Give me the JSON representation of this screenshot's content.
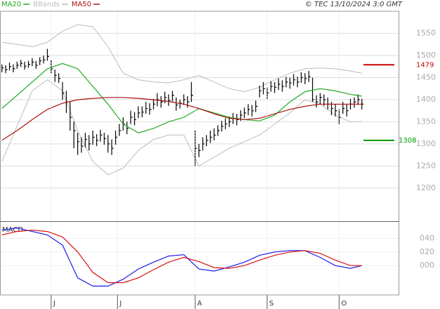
{
  "header": {
    "copyright": "© TEC 13/10/2024 3:0 GMT"
  },
  "chart_data": [
    {
      "type": "hlc",
      "xlim": [
        -0.5,
        104.7
      ],
      "ylim": [
        1125,
        1597
      ],
      "yticks": [
        1200,
        1250,
        1300,
        1350,
        1400,
        1450,
        1500,
        1550
      ],
      "grid": true,
      "bars": {
        "color": "#000000",
        "high": [
          1480,
          1478,
          1484,
          1480,
          1486,
          1490,
          1486,
          1488,
          1494,
          1488,
          1496,
          1500,
          1515,
          1490,
          1468,
          1460,
          1440,
          1420,
          1395,
          1350,
          1325,
          1315,
          1325,
          1320,
          1330,
          1322,
          1332,
          1325,
          1320,
          1310,
          1330,
          1345,
          1360,
          1350,
          1375,
          1372,
          1385,
          1385,
          1395,
          1392,
          1402,
          1415,
          1408,
          1418,
          1412,
          1420,
          1405,
          1400,
          1412,
          1408,
          1440,
          1330,
          1300,
          1315,
          1320,
          1330,
          1335,
          1342,
          1352,
          1358,
          1362,
          1370,
          1368,
          1376,
          1382,
          1390,
          1388,
          1398,
          1432,
          1440,
          1428,
          1442,
          1440,
          1448,
          1444,
          1452,
          1450,
          1458,
          1452,
          1462,
          1460,
          1465,
          1450,
          1410,
          1415,
          1412,
          1405,
          1395,
          1390,
          1378,
          1395,
          1390,
          1402,
          1405,
          1412,
          1402
        ],
        "low": [
          1462,
          1460,
          1466,
          1462,
          1470,
          1474,
          1468,
          1472,
          1476,
          1470,
          1478,
          1482,
          1488,
          1460,
          1440,
          1438,
          1400,
          1370,
          1330,
          1290,
          1275,
          1280,
          1292,
          1285,
          1298,
          1295,
          1305,
          1298,
          1280,
          1275,
          1298,
          1318,
          1330,
          1322,
          1345,
          1342,
          1358,
          1360,
          1368,
          1366,
          1378,
          1385,
          1382,
          1392,
          1386,
          1396,
          1375,
          1380,
          1388,
          1382,
          1395,
          1250,
          1270,
          1285,
          1295,
          1302,
          1308,
          1318,
          1328,
          1333,
          1338,
          1345,
          1342,
          1352,
          1358,
          1365,
          1362,
          1372,
          1405,
          1412,
          1402,
          1418,
          1415,
          1422,
          1418,
          1428,
          1425,
          1432,
          1428,
          1438,
          1435,
          1440,
          1395,
          1382,
          1390,
          1386,
          1378,
          1365,
          1362,
          1345,
          1368,
          1362,
          1378,
          1382,
          1388,
          1378
        ],
        "close": [
          1472,
          1468,
          1475,
          1470,
          1478,
          1482,
          1476,
          1480,
          1485,
          1478,
          1488,
          1490,
          1498,
          1470,
          1455,
          1448,
          1415,
          1395,
          1360,
          1330,
          1305,
          1295,
          1310,
          1300,
          1315,
          1308,
          1320,
          1312,
          1300,
          1290,
          1315,
          1330,
          1345,
          1335,
          1360,
          1355,
          1370,
          1372,
          1380,
          1378,
          1390,
          1400,
          1395,
          1405,
          1398,
          1410,
          1388,
          1392,
          1400,
          1395,
          1410,
          1290,
          1285,
          1300,
          1308,
          1315,
          1320,
          1330,
          1340,
          1345,
          1350,
          1358,
          1355,
          1365,
          1370,
          1378,
          1375,
          1385,
          1420,
          1425,
          1415,
          1430,
          1428,
          1435,
          1430,
          1440,
          1438,
          1445,
          1440,
          1450,
          1448,
          1452,
          1400,
          1395,
          1405,
          1400,
          1390,
          1380,
          1375,
          1360,
          1380,
          1375,
          1390,
          1395,
          1400,
          1390
        ]
      },
      "line_x": [
        0,
        4,
        8,
        12,
        16,
        20,
        24,
        28,
        32,
        36,
        40,
        44,
        48,
        52,
        56,
        60,
        64,
        68,
        72,
        76,
        80,
        84,
        88,
        92,
        95
      ],
      "series": [
        {
          "name": "MA20",
          "color": "#22aa22",
          "values": [
            1380,
            1410,
            1440,
            1470,
            1482,
            1470,
            1430,
            1390,
            1345,
            1325,
            1335,
            1350,
            1360,
            1380,
            1370,
            1360,
            1355,
            1352,
            1365,
            1395,
            1418,
            1425,
            1420,
            1412,
            1408
          ]
        },
        {
          "name": "BBands",
          "color": "#bbbbbb",
          "upper": [
            1530,
            1525,
            1520,
            1530,
            1555,
            1570,
            1565,
            1520,
            1460,
            1445,
            1440,
            1438,
            1445,
            1455,
            1440,
            1425,
            1418,
            1428,
            1445,
            1460,
            1470,
            1472,
            1470,
            1465,
            1460
          ],
          "lower": [
            1260,
            1340,
            1420,
            1445,
            1420,
            1330,
            1260,
            1230,
            1245,
            1285,
            1310,
            1320,
            1320,
            1250,
            1270,
            1290,
            1305,
            1320,
            1345,
            1370,
            1400,
            1390,
            1365,
            1350,
            1350
          ]
        },
        {
          "name": "MA50",
          "color": "#aa1111",
          "values": [
            1308,
            1330,
            1355,
            1378,
            1392,
            1400,
            1403,
            1405,
            1405,
            1403,
            1400,
            1396,
            1390,
            1380,
            1368,
            1358,
            1355,
            1358,
            1368,
            1378,
            1385,
            1390,
            1390,
            1390,
            1390
          ]
        }
      ],
      "levels": [
        {
          "value": 1479,
          "color": "#cc0000"
        },
        {
          "value": 1308,
          "color": "#009900"
        }
      ]
    },
    {
      "type": "line",
      "title": "MACD",
      "xlim": [
        -0.5,
        104.7
      ],
      "ylim": [
        -43,
        64
      ],
      "yticks": [
        {
          "value": 0,
          "label": "000"
        },
        {
          "value": 20,
          "label": "020"
        },
        {
          "value": 40,
          "label": "040"
        }
      ],
      "xticks": [
        {
          "value": 13,
          "label": "J"
        },
        {
          "value": 30.5,
          "label": "J"
        },
        {
          "value": 51,
          "label": "A"
        },
        {
          "value": 70,
          "label": "S"
        },
        {
          "value": 89,
          "label": "O"
        }
      ],
      "x": [
        0,
        4,
        8,
        12,
        16,
        20,
        24,
        28,
        32,
        36,
        40,
        44,
        48,
        52,
        56,
        60,
        64,
        68,
        72,
        76,
        80,
        84,
        88,
        92,
        95
      ],
      "series": [
        {
          "color": "#1a1aee",
          "values": [
            52,
            55,
            50,
            45,
            30,
            -18,
            -30,
            -30,
            -20,
            -5,
            5,
            14,
            16,
            -5,
            -8,
            -2,
            5,
            15,
            20,
            22,
            22,
            12,
            0,
            -4,
            0
          ]
        },
        {
          "color": "#dd1111",
          "values": [
            45,
            50,
            52,
            50,
            42,
            20,
            -10,
            -25,
            -25,
            -18,
            -6,
            5,
            12,
            6,
            -3,
            -4,
            0,
            8,
            15,
            20,
            22,
            18,
            8,
            0,
            0
          ]
        }
      ]
    }
  ]
}
